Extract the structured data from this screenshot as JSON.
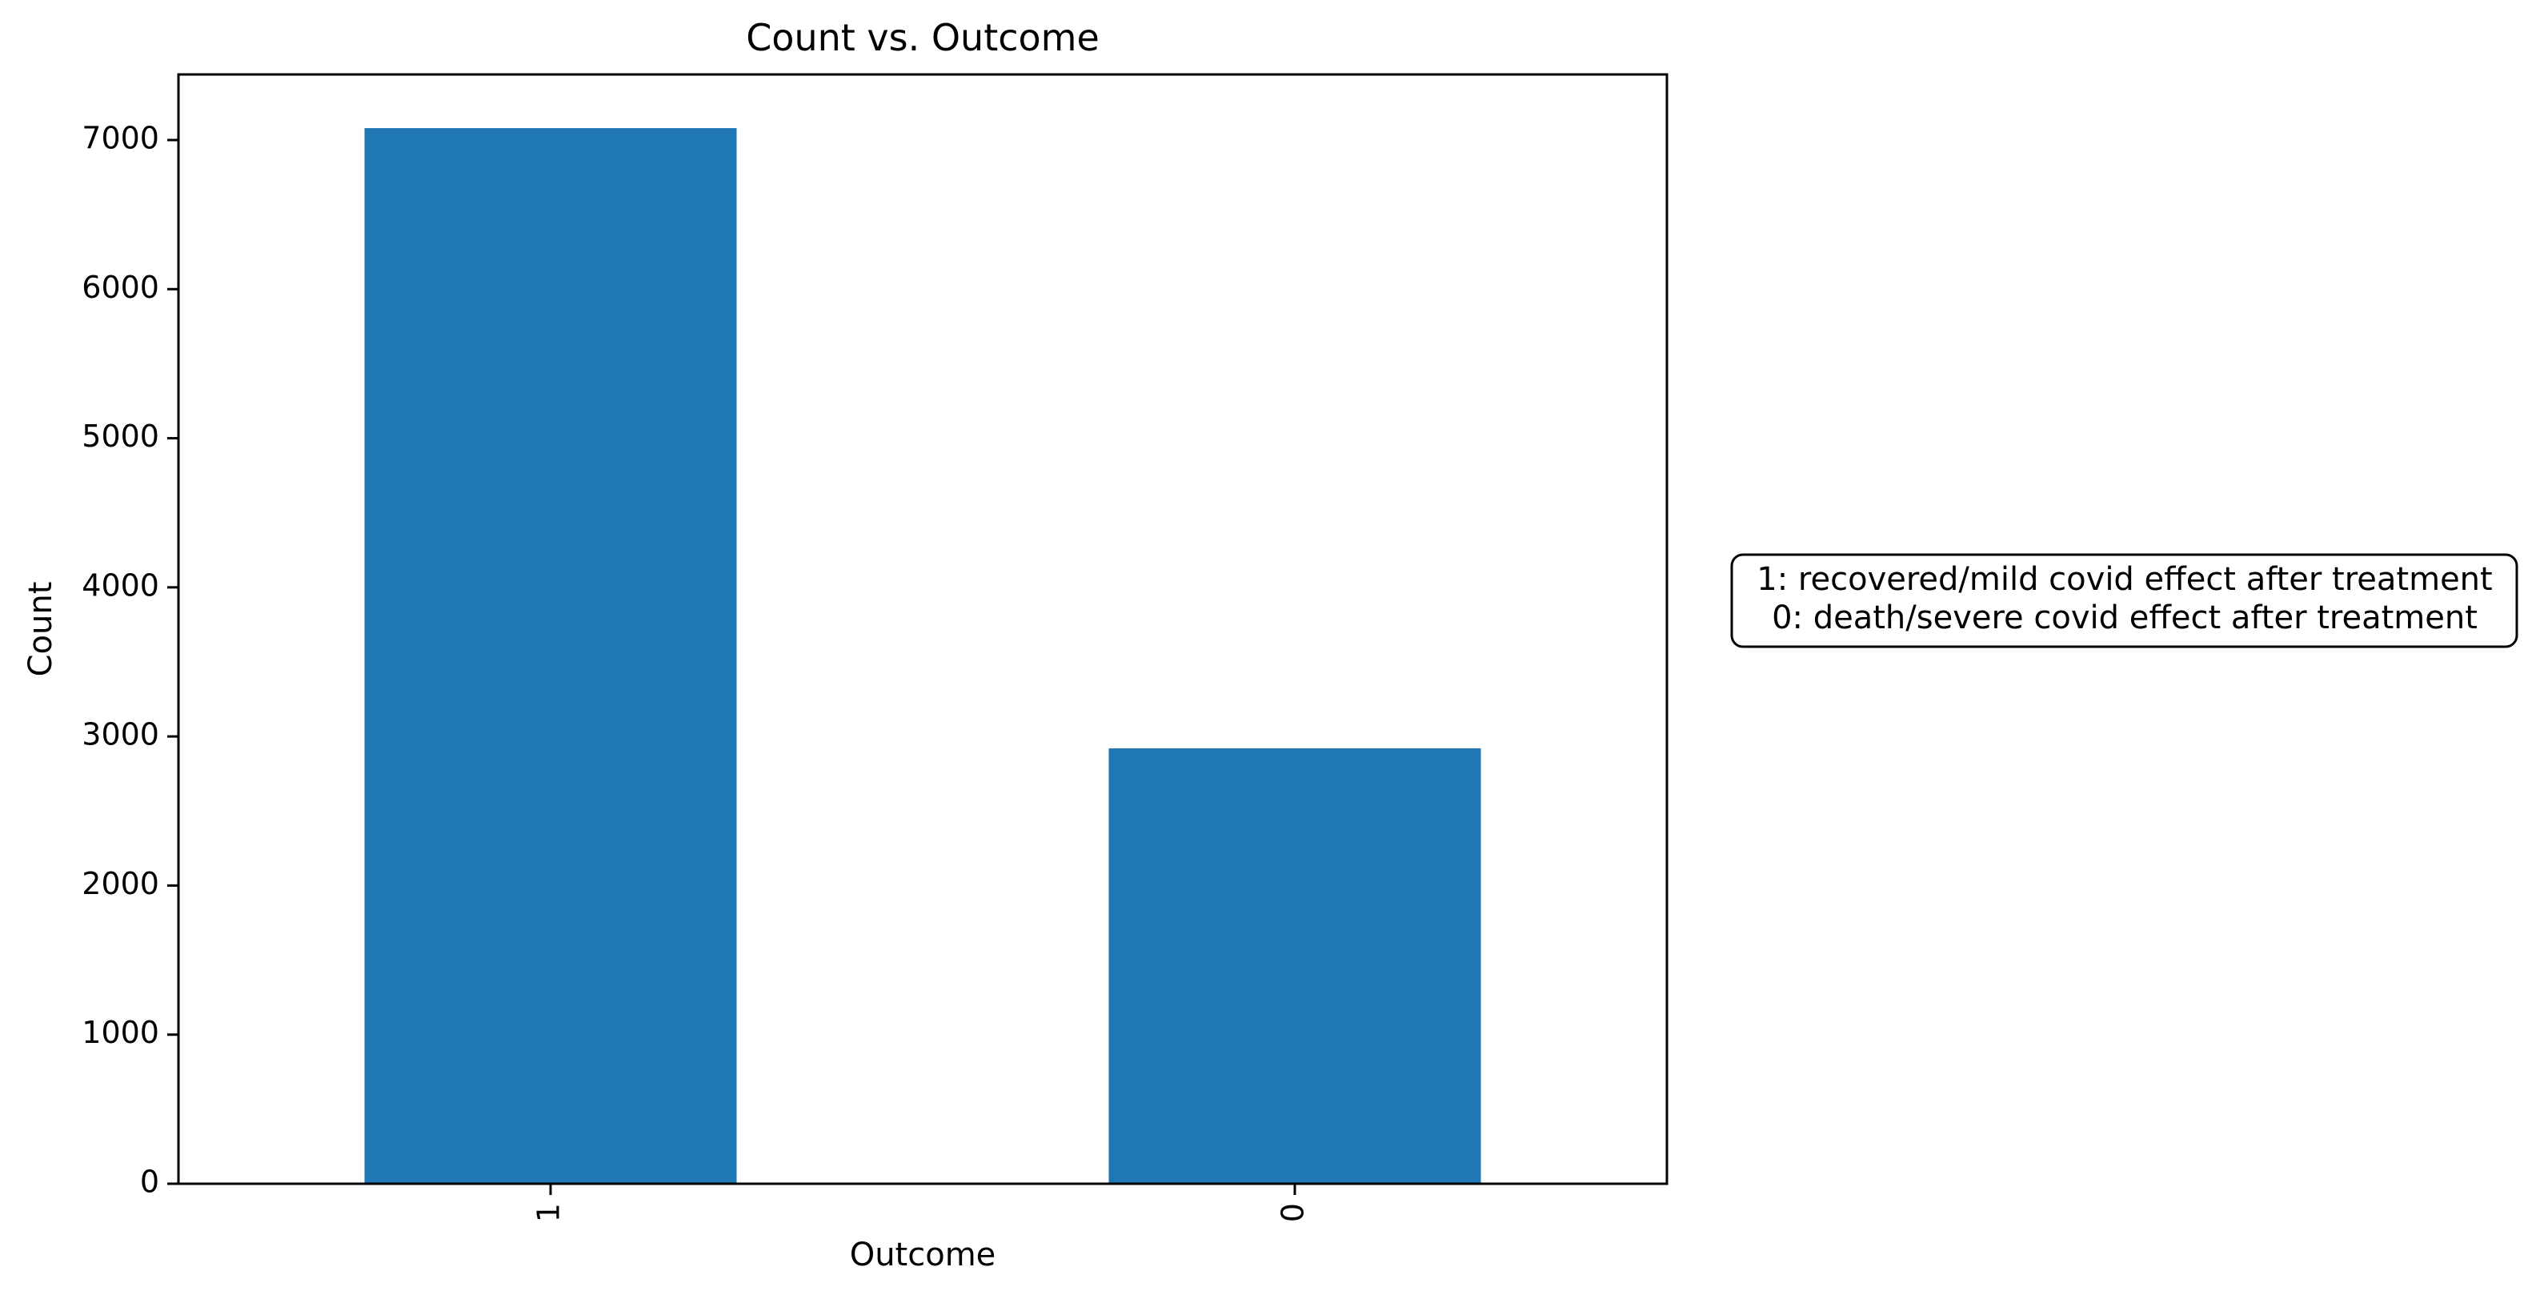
{
  "chart_data": {
    "type": "bar",
    "title": "Count vs. Outcome",
    "xlabel": "Outcome",
    "ylabel": "Count",
    "categories": [
      "1",
      "0"
    ],
    "values": [
      7080,
      2920
    ],
    "ylim": [
      0,
      7440
    ],
    "yticks": [
      0,
      1000,
      2000,
      3000,
      4000,
      5000,
      6000,
      7000
    ],
    "grid": false,
    "bar_color": "#1f77b4",
    "annotation": {
      "lines": [
        "1: recovered/mild covid effect after treatment",
        "0: death/severe covid effect after treatment"
      ]
    }
  }
}
